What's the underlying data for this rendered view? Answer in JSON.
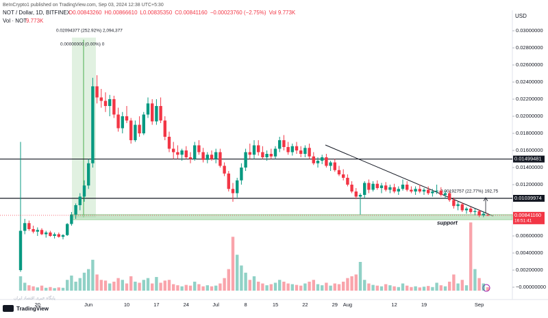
{
  "chart_data": {
    "type": "candlestick",
    "publisher": "BeInCrypto1 published on TradingView.com, Sep 03, 2024 12:38 UTC+5:30",
    "symbol": "NOT / Dollar, 1D, BITFINEX",
    "legend_values": [
      "O0.00843260",
      "H0.00866610",
      "L0.00835350",
      "C0.00841160",
      "−0.00023760 (−2.75%)"
    ],
    "legend_volume": "Vol 9.773K",
    "volume_title": "Vol · NOT",
    "volume_value": "9.773K",
    "currency": "USD",
    "brand": "TradingView",
    "watermark": "پایگاه خبری اقتصاد ایران",
    "categories": [
      null,
      null,
      null,
      null,
      "20",
      null,
      null,
      null,
      null,
      null,
      null,
      null,
      null,
      null,
      null,
      null,
      "Jun",
      null,
      null,
      null,
      null,
      null,
      null,
      null,
      null,
      "10",
      null,
      null,
      null,
      null,
      null,
      null,
      "17",
      null,
      null,
      null,
      null,
      null,
      null,
      "24",
      null,
      null,
      null,
      null,
      null,
      null,
      "Jul",
      null,
      null,
      null,
      null,
      null,
      null,
      "8",
      null,
      null,
      null,
      null,
      null,
      null,
      "15",
      null,
      null,
      null,
      null,
      null,
      null,
      "22",
      null,
      null,
      null,
      null,
      null,
      null,
      "29",
      null,
      null,
      "Aug",
      null,
      null,
      null,
      null,
      null,
      null,
      null,
      null,
      null,
      null,
      "12",
      null,
      null,
      null,
      null,
      null,
      null,
      "19",
      null,
      null,
      null,
      null,
      null,
      null,
      null,
      null,
      null,
      null,
      null,
      null,
      "Sep",
      null,
      null
    ],
    "ohlc": [
      [
        0.002,
        0.017,
        0.0018,
        0.0066
      ],
      [
        0.0066,
        0.008,
        0.0062,
        0.0075
      ],
      [
        0.0075,
        0.0078,
        0.0066,
        0.0068
      ],
      [
        0.0068,
        0.0072,
        0.0063,
        0.0065
      ],
      [
        0.0065,
        0.007,
        0.006,
        0.0067
      ],
      [
        0.0067,
        0.0069,
        0.0061,
        0.0062
      ],
      [
        0.0062,
        0.0066,
        0.0058,
        0.0064
      ],
      [
        0.0064,
        0.0066,
        0.0059,
        0.006
      ],
      [
        0.006,
        0.0064,
        0.0057,
        0.0062
      ],
      [
        0.0062,
        0.0064,
        0.0058,
        0.0059
      ],
      [
        0.0059,
        0.0062,
        0.0056,
        0.0061
      ],
      [
        0.0061,
        0.0075,
        0.006,
        0.0074
      ],
      [
        0.0074,
        0.0088,
        0.0072,
        0.0085
      ],
      [
        0.0085,
        0.0098,
        0.008,
        0.0096
      ],
      [
        0.0096,
        0.011,
        0.009,
        0.0106
      ],
      [
        0.0106,
        0.0125,
        0.01,
        0.0119
      ],
      [
        0.0119,
        0.015,
        0.0115,
        0.0145
      ],
      [
        0.0145,
        0.0245,
        0.014,
        0.0235
      ],
      [
        0.0235,
        0.0248,
        0.0215,
        0.0222
      ],
      [
        0.0222,
        0.0232,
        0.021,
        0.0218
      ],
      [
        0.0218,
        0.0228,
        0.0205,
        0.0212
      ],
      [
        0.0212,
        0.0225,
        0.02,
        0.022
      ],
      [
        0.022,
        0.0224,
        0.0198,
        0.0202
      ],
      [
        0.0202,
        0.021,
        0.0182,
        0.0186
      ],
      [
        0.0186,
        0.0205,
        0.018,
        0.02
      ],
      [
        0.02,
        0.0212,
        0.0192,
        0.0195
      ],
      [
        0.0195,
        0.0198,
        0.0168,
        0.0172
      ],
      [
        0.0172,
        0.0195,
        0.017,
        0.019
      ],
      [
        0.019,
        0.02,
        0.0176,
        0.018
      ],
      [
        0.018,
        0.0205,
        0.0178,
        0.0202
      ],
      [
        0.0202,
        0.0222,
        0.0198,
        0.0215
      ],
      [
        0.0215,
        0.022,
        0.019,
        0.0194
      ],
      [
        0.0194,
        0.022,
        0.019,
        0.0212
      ],
      [
        0.0212,
        0.0222,
        0.0192,
        0.0195
      ],
      [
        0.0195,
        0.02,
        0.0172,
        0.0176
      ],
      [
        0.0176,
        0.0182,
        0.0158,
        0.0162
      ],
      [
        0.0162,
        0.017,
        0.015,
        0.0158
      ],
      [
        0.0158,
        0.0166,
        0.015,
        0.0155
      ],
      [
        0.0155,
        0.0162,
        0.0148,
        0.016
      ],
      [
        0.016,
        0.0165,
        0.015,
        0.0152
      ],
      [
        0.0152,
        0.0158,
        0.0145,
        0.015
      ],
      [
        0.015,
        0.017,
        0.0148,
        0.0166
      ],
      [
        0.0166,
        0.0172,
        0.0155,
        0.0158
      ],
      [
        0.0158,
        0.0163,
        0.0146,
        0.0149
      ],
      [
        0.0149,
        0.0158,
        0.0145,
        0.0155
      ],
      [
        0.0155,
        0.016,
        0.0148,
        0.015
      ],
      [
        0.015,
        0.0162,
        0.0145,
        0.0158
      ],
      [
        0.0158,
        0.0162,
        0.014,
        0.0142
      ],
      [
        0.0142,
        0.0146,
        0.013,
        0.0133
      ],
      [
        0.0133,
        0.0136,
        0.0112,
        0.0115
      ],
      [
        0.0115,
        0.0122,
        0.01,
        0.011
      ],
      [
        0.011,
        0.0128,
        0.0105,
        0.0125
      ],
      [
        0.0125,
        0.0145,
        0.012,
        0.014
      ],
      [
        0.014,
        0.0162,
        0.0136,
        0.0158
      ],
      [
        0.0158,
        0.0168,
        0.015,
        0.0155
      ],
      [
        0.0155,
        0.0172,
        0.015,
        0.0166
      ],
      [
        0.0166,
        0.0172,
        0.0154,
        0.0158
      ],
      [
        0.0158,
        0.0165,
        0.015,
        0.0152
      ],
      [
        0.0152,
        0.016,
        0.0148,
        0.0156
      ],
      [
        0.0156,
        0.0162,
        0.015,
        0.0153
      ],
      [
        0.0153,
        0.0165,
        0.015,
        0.0162
      ],
      [
        0.0162,
        0.0176,
        0.0158,
        0.0172
      ],
      [
        0.0172,
        0.0178,
        0.016,
        0.0164
      ],
      [
        0.0164,
        0.017,
        0.0155,
        0.0158
      ],
      [
        0.0158,
        0.0168,
        0.0154,
        0.0165
      ],
      [
        0.0165,
        0.017,
        0.0156,
        0.016
      ],
      [
        0.016,
        0.0165,
        0.0152,
        0.0156
      ],
      [
        0.0156,
        0.0166,
        0.0152,
        0.0163
      ],
      [
        0.0163,
        0.0168,
        0.015,
        0.0153
      ],
      [
        0.0153,
        0.0158,
        0.0143,
        0.0145
      ],
      [
        0.0145,
        0.0152,
        0.014,
        0.0148
      ],
      [
        0.0148,
        0.0155,
        0.0144,
        0.0152
      ],
      [
        0.0152,
        0.0156,
        0.014,
        0.0142
      ],
      [
        0.0142,
        0.0148,
        0.0136,
        0.0146
      ],
      [
        0.0146,
        0.015,
        0.0135,
        0.0137
      ],
      [
        0.0137,
        0.0142,
        0.013,
        0.0132
      ],
      [
        0.0132,
        0.0138,
        0.0125,
        0.0128
      ],
      [
        0.0128,
        0.0132,
        0.0118,
        0.012
      ],
      [
        0.012,
        0.0124,
        0.011,
        0.0112
      ],
      [
        0.0112,
        0.0116,
        0.0103,
        0.0106
      ],
      [
        0.0106,
        0.011,
        0.0085,
        0.0108
      ],
      [
        0.0108,
        0.0124,
        0.0104,
        0.0122
      ],
      [
        0.0122,
        0.0126,
        0.011,
        0.0114
      ],
      [
        0.0114,
        0.0124,
        0.0112,
        0.0121
      ],
      [
        0.0121,
        0.0125,
        0.0114,
        0.0116
      ],
      [
        0.0116,
        0.0122,
        0.011,
        0.0119
      ],
      [
        0.0119,
        0.0123,
        0.0112,
        0.0114
      ],
      [
        0.0114,
        0.012,
        0.011,
        0.0117
      ],
      [
        0.0117,
        0.0121,
        0.011,
        0.0112
      ],
      [
        0.0112,
        0.0118,
        0.0108,
        0.0115
      ],
      [
        0.0115,
        0.0126,
        0.0113,
        0.012
      ],
      [
        0.012,
        0.0124,
        0.0112,
        0.0114
      ],
      [
        0.0114,
        0.0118,
        0.011,
        0.0112
      ],
      [
        0.0112,
        0.0118,
        0.0108,
        0.0115
      ],
      [
        0.0115,
        0.012,
        0.011,
        0.0112
      ],
      [
        0.0112,
        0.0116,
        0.0108,
        0.0114
      ],
      [
        0.0114,
        0.0118,
        0.0108,
        0.011
      ],
      [
        0.011,
        0.0115,
        0.0106,
        0.0112
      ],
      [
        0.0112,
        0.012,
        0.0109,
        0.0113
      ],
      [
        0.0113,
        0.0117,
        0.0106,
        0.0108
      ],
      [
        0.0108,
        0.0113,
        0.0104,
        0.011
      ],
      [
        0.011,
        0.0113,
        0.01,
        0.0102
      ],
      [
        0.0102,
        0.0105,
        0.0092,
        0.0095
      ],
      [
        0.0095,
        0.01,
        0.009,
        0.0097
      ],
      [
        0.0097,
        0.0099,
        0.0088,
        0.009
      ],
      [
        0.009,
        0.0094,
        0.0086,
        0.0092
      ],
      [
        0.0092,
        0.0094,
        0.0086,
        0.0088
      ],
      [
        0.0088,
        0.0092,
        0.0084,
        0.0089
      ],
      [
        0.0089,
        0.0091,
        0.0082,
        0.0084
      ],
      [
        0.0084,
        0.0089,
        0.0082,
        0.0086
      ],
      [
        0.0084326,
        0.0086661,
        0.0083535,
        0.0084116
      ]
    ],
    "volume": [
      40000,
      22000,
      15000,
      12000,
      9000,
      14000,
      8000,
      10000,
      7000,
      9000,
      8000,
      30000,
      42000,
      25000,
      35000,
      50000,
      60000,
      86000,
      45000,
      30000,
      28000,
      20000,
      25000,
      35000,
      30000,
      20000,
      40000,
      25000,
      22000,
      30000,
      35000,
      20000,
      38000,
      22000,
      28000,
      30000,
      18000,
      15000,
      12000,
      16000,
      14000,
      25000,
      18000,
      12000,
      15000,
      12000,
      14000,
      20000,
      35000,
      60000,
      150000,
      100000,
      70000,
      50000,
      30000,
      40000,
      25000,
      20000,
      15000,
      18000,
      22000,
      30000,
      25000,
      20000,
      18000,
      16000,
      14000,
      20000,
      25000,
      30000,
      18000,
      15000,
      22000,
      14000,
      20000,
      18000,
      25000,
      35000,
      40000,
      45000,
      80000,
      30000,
      20000,
      16000,
      14000,
      12000,
      18000,
      15000,
      12000,
      10000,
      20000,
      14000,
      10000,
      12000,
      9000,
      11000,
      13000,
      10000,
      22000,
      15000,
      12000,
      25000,
      45000,
      20000,
      30000,
      15000,
      190000,
      60000,
      35000,
      20000,
      9773
    ],
    "volume_lim": [
      0,
      200000
    ],
    "up_color": "#089981",
    "down_color": "#f23645",
    "ylim": [
      -0.00144,
      0.032
    ],
    "yticks": [
      {
        "value": 0.03,
        "label": "0.03000000"
      },
      {
        "value": 0.028,
        "label": "0.02800000"
      },
      {
        "value": 0.026,
        "label": "0.02600000"
      },
      {
        "value": 0.024,
        "label": "0.02400000"
      },
      {
        "value": 0.022,
        "label": "0.02200000"
      },
      {
        "value": 0.02,
        "label": "0.02000000"
      },
      {
        "value": 0.018,
        "label": "0.01800000"
      },
      {
        "value": 0.016,
        "label": "0.01600000"
      },
      {
        "value": 0.014,
        "label": "0.01400000"
      },
      {
        "value": 0.012,
        "label": "0.01200000"
      },
      {
        "value": 0.006,
        "label": "0.00600000"
      },
      {
        "value": 0.004,
        "label": "0.00400000"
      },
      {
        "value": 0.002,
        "label": "0.00200000"
      },
      {
        "value": 0,
        "label": "−0.00000000"
      }
    ],
    "horizontal_lines": [
      {
        "value": 0.01499481,
        "label": "0.01499481"
      },
      {
        "value": 0.01039974,
        "label": "0.01039974"
      }
    ],
    "last_price": {
      "value": 0.0084116,
      "label": "0.00841160",
      "countdown": "16:51:41"
    },
    "support_zone": {
      "range": [
        0.0079,
        0.0085
      ],
      "label": "support"
    },
    "annotations": [
      "0.02094377 (252.92%) 2,094,377",
      "0.00000000 (0.00%) 0",
      "0.00192757 (22.77%) 192,75"
    ]
  }
}
